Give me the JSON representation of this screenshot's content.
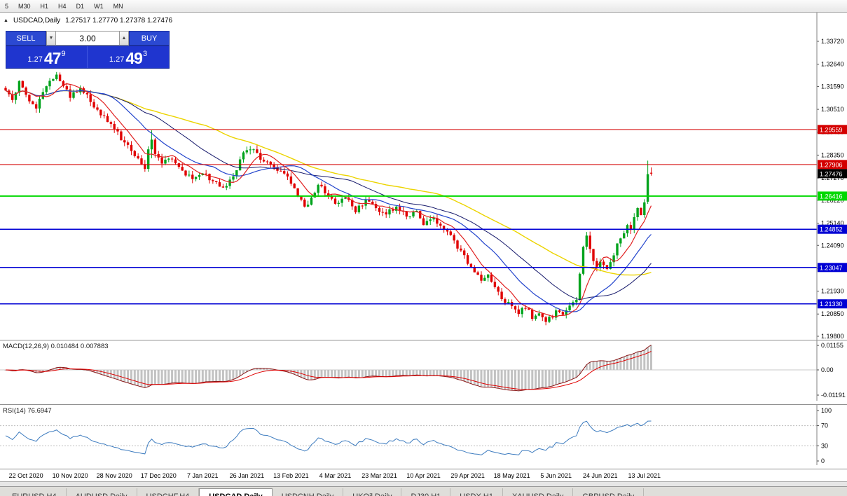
{
  "toolbar": {
    "timeframes": [
      "5",
      "M30",
      "H1",
      "H4",
      "D1",
      "W1",
      "MN"
    ]
  },
  "chart_header": {
    "collapse_icon": "▲",
    "symbol_title": "USDCAD,Daily",
    "ohlc": "1.27517 1.27770 1.27378 1.27476"
  },
  "trade_panel": {
    "sell_label": "SELL",
    "buy_label": "BUY",
    "volume": "3.00",
    "icons": {
      "volume_down": "▼",
      "volume_up": "▲"
    },
    "sell_price": {
      "prefix": "1.27",
      "big": "47",
      "sup": "9"
    },
    "buy_price": {
      "prefix": "1.27",
      "big": "49",
      "sup": "3"
    }
  },
  "price_axis": {
    "ticks": [
      "1.33720",
      "1.32640",
      "1.31590",
      "1.30510",
      "1.29430",
      "1.28350",
      "1.27270",
      "1.26220",
      "1.25140",
      "1.24090",
      "1.23010",
      "1.21930",
      "1.20850",
      "1.19800"
    ],
    "current": {
      "value": "1.27476",
      "bg": "#000000"
    }
  },
  "macd_panel": {
    "label": "MACD(12,26,9) 0.010484 0.007883",
    "axis": [
      "0.01155",
      "0.00",
      "-0.01191"
    ]
  },
  "rsi_panel": {
    "label": "RSI(14) 76.6947",
    "axis": [
      "100",
      "70",
      "30",
      "0"
    ]
  },
  "tabs": {
    "active_index": 3,
    "items": [
      "EURUSD,H4",
      "AUDUSD,Daily",
      "USDCHF,H4",
      "USDCAD,Daily",
      "USDCNH,Daily",
      "UKOil,Daily",
      "DJ30,H1",
      "USDX,H1",
      "XAUUSD,Daily",
      "GBPUSD,Daily"
    ]
  },
  "colors": {
    "bull": "#00a31c",
    "bear": "#e00000",
    "macd_hist": "#c2c2c2",
    "macd_line": "#8a1515",
    "macd_signal": "#e00000",
    "rsi_line": "#3c7bbf",
    "axis_line": "#808080",
    "current_badge": "#000000"
  },
  "chart_data": {
    "type": "candlestick",
    "symbol": "USDCAD",
    "timeframe": "Daily",
    "num_candles": 191,
    "visible_price_range": [
      1.198,
      1.3372
    ],
    "x_labels": [
      {
        "text": "22 Oct 2020",
        "i": 6
      },
      {
        "text": "10 Nov 2020",
        "i": 19
      },
      {
        "text": "28 Nov 2020",
        "i": 32
      },
      {
        "text": "17 Dec 2020",
        "i": 45
      },
      {
        "text": "7 Jan 2021",
        "i": 58
      },
      {
        "text": "26 Jan 2021",
        "i": 71
      },
      {
        "text": "13 Feb 2021",
        "i": 84
      },
      {
        "text": "4 Mar 2021",
        "i": 97
      },
      {
        "text": "23 Mar 2021",
        "i": 110
      },
      {
        "text": "10 Apr 2021",
        "i": 123
      },
      {
        "text": "29 Apr 2021",
        "i": 136
      },
      {
        "text": "18 May 2021",
        "i": 149
      },
      {
        "text": "5 Jun 2021",
        "i": 162
      },
      {
        "text": "24 Jun 2021",
        "i": 175
      },
      {
        "text": "13 Jul 2021",
        "i": 188
      }
    ],
    "close_anchors": [
      [
        0,
        1.314
      ],
      [
        2,
        1.3095
      ],
      [
        4,
        1.3185
      ],
      [
        6,
        1.312
      ],
      [
        9,
        1.3055
      ],
      [
        12,
        1.316
      ],
      [
        15,
        1.3215
      ],
      [
        17,
        1.316
      ],
      [
        19,
        1.3105
      ],
      [
        22,
        1.315
      ],
      [
        26,
        1.306
      ],
      [
        29,
        1.302
      ],
      [
        32,
        1.2958
      ],
      [
        35,
        1.2895
      ],
      [
        38,
        1.283
      ],
      [
        41,
        1.277
      ],
      [
        42,
        1.2862
      ],
      [
        43,
        1.2908
      ],
      [
        44,
        1.284
      ],
      [
        46,
        1.2795
      ],
      [
        49,
        1.2815
      ],
      [
        52,
        1.2762
      ],
      [
        55,
        1.2722
      ],
      [
        58,
        1.2748
      ],
      [
        61,
        1.2712
      ],
      [
        64,
        1.2682
      ],
      [
        67,
        1.2735
      ],
      [
        70,
        1.2848
      ],
      [
        73,
        1.2862
      ],
      [
        76,
        1.2805
      ],
      [
        79,
        1.2778
      ],
      [
        82,
        1.2748
      ],
      [
        84,
        1.27
      ],
      [
        87,
        1.2625
      ],
      [
        88,
        1.2592
      ],
      [
        90,
        1.2635
      ],
      [
        92,
        1.2695
      ],
      [
        95,
        1.2645
      ],
      [
        97,
        1.2605
      ],
      [
        100,
        1.2635
      ],
      [
        103,
        1.2565
      ],
      [
        106,
        1.2625
      ],
      [
        109,
        1.2585
      ],
      [
        112,
        1.2555
      ],
      [
        115,
        1.2592
      ],
      [
        118,
        1.2545
      ],
      [
        121,
        1.2572
      ],
      [
        123,
        1.2505
      ],
      [
        126,
        1.2538
      ],
      [
        129,
        1.2482
      ],
      [
        132,
        1.2432
      ],
      [
        134,
        1.2385
      ],
      [
        136,
        1.2322
      ],
      [
        138,
        1.2282
      ],
      [
        140,
        1.2242
      ],
      [
        142,
        1.2272
      ],
      [
        144,
        1.2212
      ],
      [
        146,
        1.2155
      ],
      [
        149,
        1.2122
      ],
      [
        151,
        1.2085
      ],
      [
        153,
        1.2112
      ],
      [
        155,
        1.2062
      ],
      [
        157,
        1.2088
      ],
      [
        159,
        1.2048
      ],
      [
        161,
        1.2068
      ],
      [
        162,
        1.2102
      ],
      [
        164,
        1.2082
      ],
      [
        166,
        1.2125
      ],
      [
        168,
        1.2152
      ],
      [
        169,
        1.2275
      ],
      [
        170,
        1.2402
      ],
      [
        171,
        1.2455
      ],
      [
        172,
        1.2392
      ],
      [
        173,
        1.2335
      ],
      [
        174,
        1.2305
      ],
      [
        175,
        1.2332
      ],
      [
        177,
        1.2298
      ],
      [
        179,
        1.2362
      ],
      [
        181,
        1.2442
      ],
      [
        183,
        1.2505
      ],
      [
        184,
        1.2482
      ],
      [
        185,
        1.2542
      ],
      [
        186,
        1.2585
      ],
      [
        187,
        1.2552
      ],
      [
        188,
        1.2612
      ],
      [
        189,
        1.2745
      ],
      [
        190,
        1.27476
      ]
    ],
    "spike_candles": [
      {
        "index": 43,
        "open": 1.2862,
        "high": 1.2952,
        "low": 1.282,
        "close": 1.2908
      },
      {
        "index": 189,
        "open": 1.2615,
        "high": 1.2809,
        "low": 1.2605,
        "close": 1.2745
      }
    ],
    "last_candle": {
      "open": 1.27517,
      "high": 1.2777,
      "low": 1.27378,
      "close": 1.27476
    },
    "levels": [
      {
        "price": 1.29559,
        "color": "#d40000",
        "width": 1
      },
      {
        "price": 1.27906,
        "color": "#d40000",
        "width": 1
      },
      {
        "price": 1.26416,
        "color": "#00d800",
        "width": 2
      },
      {
        "price": 1.24852,
        "color": "#0000d4",
        "width": 1.5
      },
      {
        "price": 1.23047,
        "color": "#0000d4",
        "width": 1.5
      },
      {
        "price": 1.2133,
        "color": "#0000d4",
        "width": 1.5
      }
    ],
    "moving_averages": [
      {
        "period": 60,
        "color": "#ecd400",
        "width": 1.4
      },
      {
        "period": 34,
        "color": "#16196b",
        "width": 1
      },
      {
        "period": 20,
        "color": "#2244cc",
        "width": 1.2
      },
      {
        "period": 8,
        "color": "#e02020",
        "width": 1.2
      }
    ],
    "indicators": {
      "macd": {
        "fast": 12,
        "slow": 26,
        "signal": 9,
        "last_values": [
          0.010484,
          0.007883
        ]
      },
      "rsi": {
        "period": 14,
        "last_value": 76.6947,
        "levels": [
          70,
          30
        ]
      }
    }
  }
}
